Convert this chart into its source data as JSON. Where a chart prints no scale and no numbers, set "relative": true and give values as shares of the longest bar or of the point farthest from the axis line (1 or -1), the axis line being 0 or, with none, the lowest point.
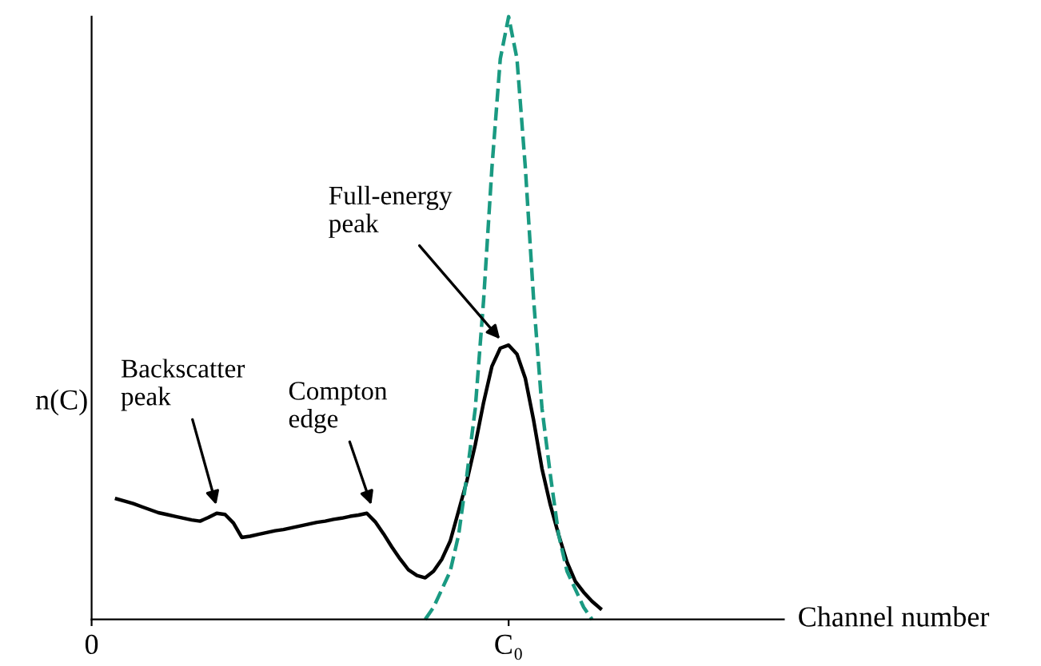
{
  "chart_data": {
    "type": "line",
    "relative": true,
    "ylabel": "n(C)",
    "xlabel": "Channel number",
    "grid": false,
    "legend": false,
    "marker": "none",
    "categories": [
      "0",
      null,
      null,
      null,
      null,
      null,
      null,
      null,
      null,
      null,
      null,
      null,
      null,
      null,
      null,
      null,
      null,
      null,
      null,
      null,
      null,
      null,
      null,
      null,
      null,
      null,
      null,
      null,
      null,
      null,
      null,
      null,
      null,
      null,
      null,
      null,
      null,
      null,
      null,
      null,
      null,
      null,
      null,
      null,
      null,
      null,
      null,
      null,
      null,
      null,
      "C₀",
      null,
      null,
      null,
      null,
      null,
      null,
      null,
      null,
      null,
      null,
      null,
      null,
      null,
      null,
      null,
      null,
      null,
      null,
      null,
      null,
      null,
      null,
      null,
      null,
      null,
      null,
      null,
      null,
      null,
      null,
      null,
      null,
      null
    ],
    "series": [
      {
        "color": "#000000",
        "line_style": "solid",
        "values": [
          null,
          null,
          null,
          0.2,
          0.196,
          0.192,
          0.187,
          0.182,
          0.177,
          0.174,
          0.171,
          0.168,
          0.165,
          0.163,
          0.169,
          0.176,
          0.174,
          0.16,
          0.136,
          0.138,
          0.141,
          0.144,
          0.147,
          0.149,
          0.152,
          0.155,
          0.158,
          0.161,
          0.163,
          0.166,
          0.168,
          0.171,
          0.173,
          0.176,
          0.162,
          0.142,
          0.12,
          0.1,
          0.082,
          0.073,
          0.069,
          0.08,
          0.1,
          0.13,
          0.18,
          0.23,
          0.29,
          0.36,
          0.42,
          0.45,
          0.455,
          0.44,
          0.4,
          0.33,
          0.25,
          0.19,
          0.14,
          0.095,
          0.063,
          0.045,
          0.03,
          0.018,
          null,
          null,
          null,
          null,
          null,
          null,
          null,
          null,
          null,
          null,
          null,
          null,
          null,
          null,
          null,
          null,
          null,
          null,
          null,
          null,
          null,
          null
        ]
      },
      {
        "color": "#1a9a82",
        "line_style": "dashed",
        "values": [
          null,
          null,
          null,
          null,
          null,
          null,
          null,
          null,
          null,
          null,
          null,
          null,
          null,
          null,
          null,
          null,
          null,
          null,
          null,
          null,
          null,
          null,
          null,
          null,
          null,
          null,
          null,
          null,
          null,
          null,
          null,
          null,
          null,
          null,
          null,
          null,
          null,
          null,
          null,
          null,
          0.0,
          0.02,
          0.05,
          0.08,
          0.14,
          0.24,
          0.35,
          0.53,
          0.75,
          0.93,
          1.0,
          0.93,
          0.75,
          0.53,
          0.35,
          0.24,
          0.14,
          0.08,
          0.05,
          0.02,
          0.0,
          null,
          null,
          null,
          null,
          null,
          null,
          null,
          null,
          null,
          null,
          null,
          null,
          null,
          null,
          null,
          null,
          null,
          null,
          null,
          null,
          null,
          null,
          null
        ]
      }
    ],
    "annotations": [
      "Backscatter\npeak",
      "Compton\nedge",
      "Full-energy\npeak"
    ]
  }
}
